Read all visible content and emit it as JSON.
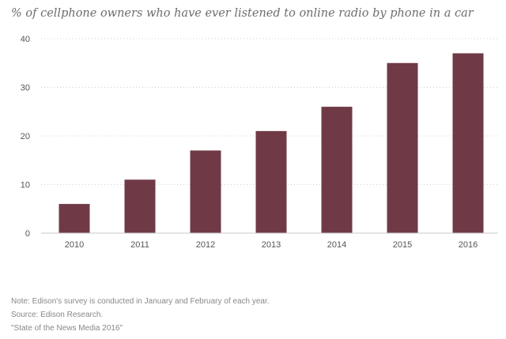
{
  "chart_data": {
    "type": "bar",
    "title": "% of cellphone owners who have ever listened to online radio by phone in a car",
    "xlabel": "",
    "ylabel": "",
    "categories": [
      "2010",
      "2011",
      "2012",
      "2013",
      "2014",
      "2015",
      "2016"
    ],
    "values": [
      6,
      11,
      17,
      21,
      26,
      35,
      37
    ],
    "ylim": [
      0,
      40
    ],
    "yticks": [
      0,
      10,
      20,
      30,
      40
    ],
    "grid": "horizontal dotted",
    "bar_color": "#6f3a46"
  },
  "notes": {
    "note": "Note: Edison's survey is conducted in January and February of each year.",
    "source": "Source: Edison Research.",
    "report": "\"State of the News Media 2016\""
  }
}
